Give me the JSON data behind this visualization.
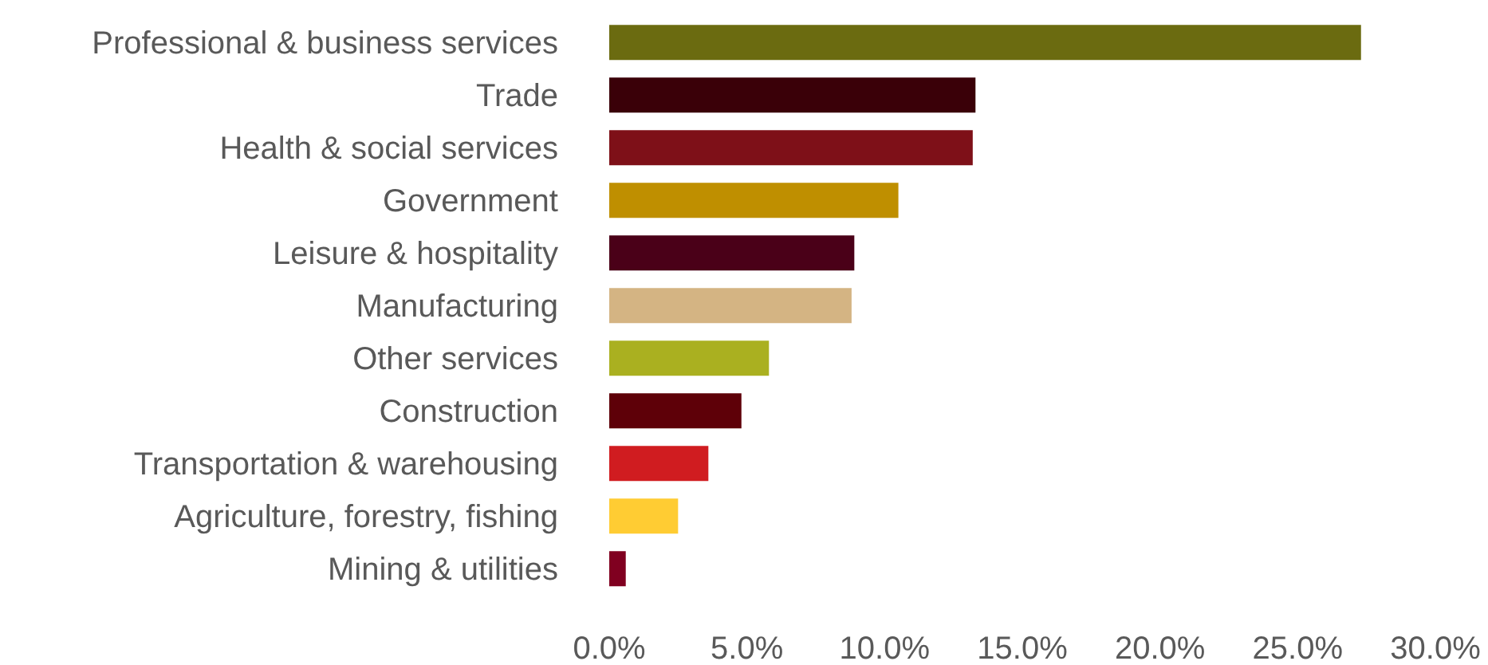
{
  "chart_data": {
    "type": "bar",
    "orientation": "horizontal",
    "categories": [
      "Professional & business services",
      "Trade",
      "Health & social services",
      "Government",
      "Leisure & hospitality",
      "Manufacturing",
      "Other services",
      "Construction",
      "Transportation & warehousing",
      "Agriculture, forestry, fishing",
      "Mining & utilities"
    ],
    "values": [
      27.3,
      13.3,
      13.2,
      10.5,
      8.9,
      8.8,
      5.8,
      4.8,
      3.6,
      2.5,
      0.6
    ],
    "colors": [
      "#6b6b10",
      "#3a0008",
      "#7e1018",
      "#bf8f00",
      "#4a0018",
      "#d4b483",
      "#aab020",
      "#5e0008",
      "#d01c20",
      "#ffcc33",
      "#800020"
    ],
    "xlim": [
      0,
      30
    ],
    "xticks": [
      {
        "value": 0,
        "label": "0.0%"
      },
      {
        "value": 5,
        "label": "5.0%"
      },
      {
        "value": 10,
        "label": "10.0%"
      },
      {
        "value": 15,
        "label": "15.0%"
      },
      {
        "value": 20,
        "label": "20.0%"
      },
      {
        "value": 25,
        "label": "25.0%"
      },
      {
        "value": 30,
        "label": "30.0%"
      }
    ],
    "grid": false,
    "legend": false
  }
}
